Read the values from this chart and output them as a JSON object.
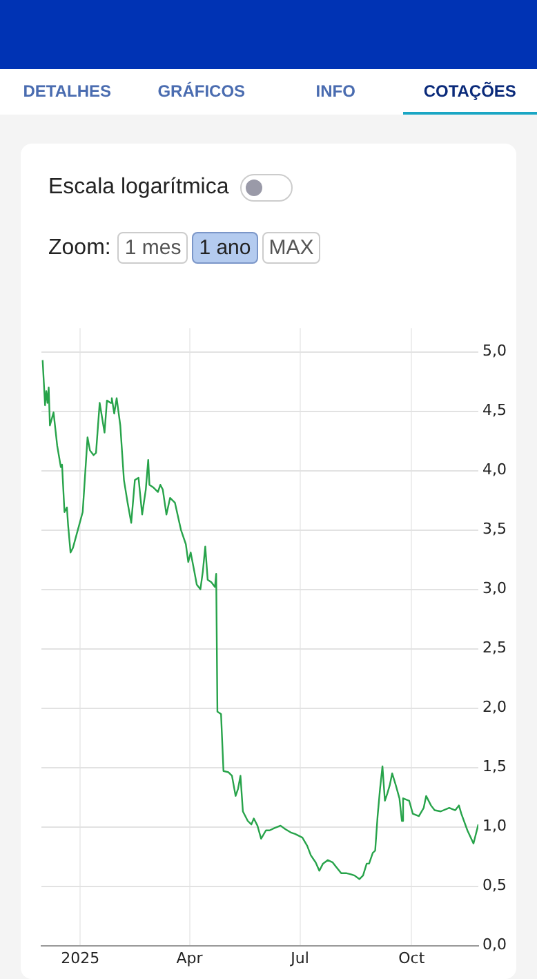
{
  "chart_data": {
    "type": "line",
    "annotations": [
      "DETALHES",
      "GRÁFICOS",
      "INFO",
      "COTAÇÕES",
      "Escala logarítmica",
      "Zoom:",
      "1 mes",
      "1 ano",
      "MAX"
    ],
    "x": [
      "2024-12-01",
      "2024-12-03",
      "2024-12-04",
      "2024-12-05",
      "2024-12-06",
      "2024-12-07",
      "2024-12-10",
      "2024-12-13",
      "2024-12-16",
      "2024-12-17",
      "2024-12-19",
      "2024-12-21",
      "2024-12-22",
      "2024-12-24",
      "2024-12-26",
      "2024-12-30",
      "2025-01-03",
      "2025-01-07",
      "2025-01-09",
      "2025-01-12",
      "2025-01-14",
      "2025-01-17",
      "2025-01-21",
      "2025-01-23",
      "2025-01-26",
      "2025-01-27",
      "2025-01-29",
      "2025-01-31",
      "2025-02-03",
      "2025-02-06",
      "2025-02-09",
      "2025-02-12",
      "2025-02-15",
      "2025-02-18",
      "2025-02-21",
      "2025-02-24",
      "2025-02-26",
      "2025-02-27",
      "2025-03-02",
      "2025-03-06",
      "2025-03-08",
      "2025-03-10",
      "2025-03-13",
      "2025-03-16",
      "2025-03-18",
      "2025-03-20",
      "2025-03-25",
      "2025-03-29",
      "2025-03-31",
      "2025-04-02",
      "2025-04-05",
      "2025-04-07",
      "2025-04-10",
      "2025-04-12",
      "2025-04-14",
      "2025-04-16",
      "2025-04-19",
      "2025-04-22",
      "2025-04-23",
      "2025-04-24",
      "2025-04-27",
      "2025-04-29",
      "2025-05-03",
      "2025-05-06",
      "2025-05-09",
      "2025-05-11",
      "2025-05-13",
      "2025-05-15",
      "2025-05-19",
      "2025-05-22",
      "2025-05-24",
      "2025-05-27",
      "2025-05-30",
      "2025-06-03",
      "2025-06-06",
      "2025-06-10",
      "2025-06-15",
      "2025-06-19",
      "2025-06-24",
      "2025-06-27",
      "2025-07-03",
      "2025-07-07",
      "2025-07-10",
      "2025-07-14",
      "2025-07-17",
      "2025-07-20",
      "2025-07-24",
      "2025-07-28",
      "2025-07-31",
      "2025-08-04",
      "2025-08-08",
      "2025-08-12",
      "2025-08-15",
      "2025-08-19",
      "2025-08-22",
      "2025-08-25",
      "2025-08-27",
      "2025-08-30",
      "2025-09-01",
      "2025-09-03",
      "2025-09-05",
      "2025-09-07",
      "2025-09-09",
      "2025-09-11",
      "2025-09-13",
      "2025-09-15",
      "2025-09-18",
      "2025-09-21",
      "2025-09-23",
      "2025-09-24",
      "2025-09-29",
      "2025-10-02",
      "2025-10-07",
      "2025-10-11",
      "2025-10-13",
      "2025-10-17",
      "2025-10-20",
      "2025-10-25",
      "2025-11-01",
      "2025-11-06",
      "2025-11-09",
      "2025-11-11",
      "2025-11-16",
      "2025-11-21",
      "2025-11-25"
    ],
    "series": [
      {
        "color": "#27a34a",
        "values": [
          4.93,
          4.55,
          4.67,
          4.57,
          4.7,
          4.38,
          4.49,
          4.21,
          4.03,
          4.05,
          3.65,
          3.69,
          3.54,
          3.31,
          3.35,
          3.5,
          3.65,
          4.28,
          4.17,
          4.13,
          4.15,
          4.57,
          4.32,
          4.59,
          4.57,
          4.61,
          4.48,
          4.61,
          4.38,
          3.92,
          3.73,
          3.56,
          3.92,
          3.94,
          3.63,
          3.84,
          4.09,
          3.88,
          3.86,
          3.82,
          3.88,
          3.84,
          3.63,
          3.77,
          3.75,
          3.73,
          3.5,
          3.38,
          3.23,
          3.31,
          3.15,
          3.04,
          3.0,
          3.15,
          3.36,
          3.08,
          3.06,
          3.02,
          3.13,
          1.97,
          1.95,
          1.47,
          1.46,
          1.43,
          1.26,
          1.32,
          1.43,
          1.13,
          1.05,
          1.02,
          1.07,
          1.01,
          0.9,
          0.97,
          0.97,
          0.99,
          1.01,
          0.98,
          0.95,
          0.94,
          0.91,
          0.84,
          0.76,
          0.7,
          0.63,
          0.69,
          0.72,
          0.7,
          0.66,
          0.61,
          0.61,
          0.6,
          0.59,
          0.56,
          0.59,
          0.69,
          0.69,
          0.78,
          0.8,
          1.09,
          1.32,
          1.51,
          1.22,
          1.28,
          1.35,
          1.45,
          1.35,
          1.24,
          1.05,
          1.24,
          1.22,
          1.11,
          1.09,
          1.16,
          1.26,
          1.18,
          1.14,
          1.13,
          1.16,
          1.14,
          1.18,
          1.11,
          0.97,
          0.86,
          1.02
        ]
      }
    ],
    "xlim": [
      "2024-11-30",
      "2025-11-25"
    ],
    "xticks": [
      {
        "value": "2025-01-01",
        "label": "2025"
      },
      {
        "value": "2025-04-01",
        "label": "Apr"
      },
      {
        "value": "2025-07-01",
        "label": "Jul"
      },
      {
        "value": "2025-10-01",
        "label": "Oct"
      }
    ],
    "ylim": [
      0,
      5.2
    ],
    "yticks": [
      {
        "value": 0,
        "label": "0,0"
      },
      {
        "value": 0.5,
        "label": "0,5"
      },
      {
        "value": 1,
        "label": "1,0"
      },
      {
        "value": 1.5,
        "label": "1,5"
      },
      {
        "value": 2,
        "label": "2,0"
      },
      {
        "value": 2.5,
        "label": "2,5"
      },
      {
        "value": 3,
        "label": "3,0"
      },
      {
        "value": 3.5,
        "label": "3,5"
      },
      {
        "value": 4,
        "label": "4,0"
      },
      {
        "value": 4.5,
        "label": "4,5"
      },
      {
        "value": 5,
        "label": "5,0"
      }
    ],
    "grid": true,
    "legend": false,
    "marker": "none",
    "line_style": "solid"
  }
}
